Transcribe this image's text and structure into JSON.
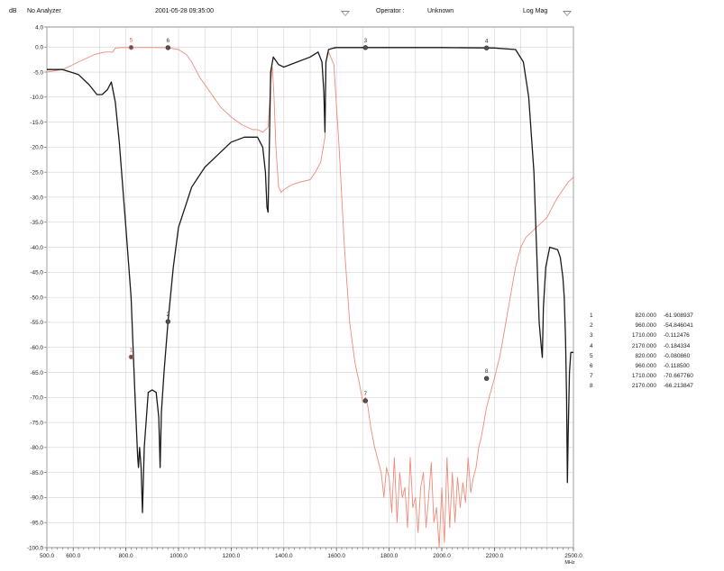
{
  "header": {
    "y_unit": "dB",
    "analyzer": "No Analyzer",
    "datetime": "2001-05-28    09:35:00",
    "operator_label": "Operator :",
    "operator_value": "Unknown",
    "format": "Log Mag"
  },
  "chart_data": {
    "type": "line",
    "title": "",
    "xlabel": "",
    "x_unit": "MHz",
    "ylabel": "",
    "y_unit": "dB",
    "xlim": [
      500,
      2500
    ],
    "ylim": [
      -100,
      4
    ],
    "grid": true,
    "x_tick_values": [
      500,
      600,
      800,
      1000,
      1200,
      1400,
      1600,
      1800,
      2000,
      2200,
      2500
    ],
    "x_tick_labels": [
      "500.0",
      "600.0",
      "800.0",
      "1000.0",
      "1200.0",
      "1400.0",
      "1600.0",
      "1800.0",
      "2000.0",
      "2200.0",
      "2500.0"
    ],
    "y_tick_values": [
      4,
      0,
      -5,
      -10,
      -15,
      -20,
      -25,
      -30,
      -35,
      -40,
      -45,
      -50,
      -55,
      -60,
      -65,
      -70,
      -75,
      -80,
      -85,
      -90,
      -95,
      -100
    ],
    "y_tick_labels": [
      "4.0",
      "0.0",
      "-5.0",
      "-10.0",
      "-15.0",
      "-20.0",
      "-25.0",
      "-30.0",
      "-35.0",
      "-40.0",
      "-45.0",
      "-50.0",
      "-55.0",
      "-60.0",
      "-65.0",
      "-70.0",
      "-75.0",
      "-80.0",
      "-85.0",
      "-90.0",
      "-95.0",
      "-100.0"
    ],
    "series": [
      {
        "color": "#1a1a1a",
        "x": [
          500,
          560,
          620,
          660,
          690,
          710,
          730,
          745,
          760,
          775,
          800,
          820,
          835,
          845,
          848,
          852,
          858,
          863,
          870,
          885,
          900,
          915,
          925,
          930,
          935,
          945,
          960,
          980,
          1000,
          1050,
          1100,
          1150,
          1200,
          1250,
          1300,
          1320,
          1330,
          1336,
          1340,
          1344,
          1350,
          1360,
          1380,
          1400,
          1450,
          1500,
          1530,
          1545,
          1552,
          1556,
          1560,
          1570,
          1590,
          1600,
          1700,
          1800,
          2000,
          2200,
          2280,
          2310,
          2330,
          2350,
          2360,
          2370,
          2378,
          2382,
          2386,
          2395,
          2410,
          2440,
          2450,
          2460,
          2465,
          2470,
          2474,
          2477,
          2480,
          2485,
          2490,
          2500
        ],
        "y": [
          -4.5,
          -4.5,
          -5.5,
          -7.5,
          -9.5,
          -9.5,
          -8.5,
          -7,
          -11,
          -19,
          -36,
          -50,
          -70,
          -82,
          -84,
          -80,
          -84,
          -93,
          -80,
          -69,
          -68.5,
          -69,
          -74,
          -84,
          -73,
          -65,
          -55,
          -44,
          -36,
          -28,
          -24,
          -21.5,
          -19,
          -18,
          -18,
          -20,
          -25,
          -32,
          -33,
          -23,
          -5,
          -2,
          -3.5,
          -4,
          -3,
          -2,
          -1,
          -3,
          -9,
          -17,
          -3,
          -0.5,
          -0.2,
          -0.1,
          -0.1,
          -0.1,
          -0.1,
          -0.2,
          -0.5,
          -3,
          -10,
          -25,
          -40,
          -55,
          -60,
          -62,
          -52,
          -44,
          -40,
          -40.5,
          -42,
          -46,
          -50,
          -58,
          -70,
          -87,
          -77,
          -65,
          -61,
          -61
        ]
      },
      {
        "color": "#f08a7a",
        "x": [
          500,
          560,
          620,
          680,
          720,
          750,
          760,
          790,
          820,
          850,
          900,
          960,
          1000,
          1030,
          1050,
          1080,
          1120,
          1160,
          1200,
          1240,
          1280,
          1300,
          1320,
          1330,
          1340,
          1345,
          1350,
          1356,
          1362,
          1370,
          1380,
          1390,
          1400,
          1430,
          1460,
          1500,
          1520,
          1540,
          1556,
          1560,
          1570,
          1590,
          1610,
          1630,
          1650,
          1670,
          1690,
          1700,
          1710,
          1720,
          1730,
          1745,
          1760,
          1770,
          1780,
          1790,
          1800,
          1810,
          1820,
          1830,
          1840,
          1850,
          1860,
          1870,
          1880,
          1890,
          1900,
          1910,
          1920,
          1930,
          1940,
          1950,
          1960,
          1970,
          1980,
          1990,
          2000,
          2010,
          2020,
          2030,
          2040,
          2050,
          2060,
          2070,
          2080,
          2090,
          2100,
          2110,
          2120,
          2130,
          2140,
          2150,
          2160,
          2170,
          2180,
          2190,
          2200,
          2210,
          2220,
          2230,
          2240,
          2260,
          2280,
          2300,
          2320,
          2340,
          2360,
          2380,
          2400,
          2420,
          2440,
          2460,
          2480,
          2500
        ],
        "y": [
          -5,
          -4.5,
          -3,
          -1.5,
          -1,
          -1,
          -0.2,
          -0.1,
          -0.1,
          -0.1,
          -0.1,
          -0.12,
          -0.5,
          -1.5,
          -3,
          -6,
          -9,
          -12,
          -14,
          -15.5,
          -16.5,
          -16.5,
          -17,
          -16.5,
          -16,
          -12,
          -7,
          -4,
          -9,
          -20,
          -28,
          -29,
          -28.5,
          -27.5,
          -27,
          -26.5,
          -25,
          -23,
          -18,
          -3,
          -1,
          -3.5,
          -20,
          -40,
          -55,
          -63,
          -68,
          -71,
          -70,
          -72,
          -76,
          -80,
          -83,
          -85,
          -90,
          -84,
          -86,
          -93,
          -82,
          -95,
          -85,
          -90,
          -88,
          -96,
          -82,
          -92,
          -90,
          -97,
          -88,
          -85,
          -96,
          -90,
          -83,
          -95,
          -92,
          -100,
          -88,
          -99,
          -82,
          -96,
          -85,
          -95,
          -86,
          -92,
          -87,
          -91,
          -82,
          -89,
          -86,
          -84,
          -80,
          -78,
          -75,
          -72,
          -70,
          -68,
          -66.2,
          -64,
          -62,
          -59,
          -56,
          -50,
          -44,
          -40,
          -38,
          -37,
          -36,
          -35,
          -34,
          -32,
          -30,
          -28.5,
          -27,
          -26
        ]
      }
    ],
    "markers": [
      {
        "id": "1",
        "x": 820,
        "y": -61.908937,
        "color": "#e06050",
        "x_label": "820.000",
        "y_label": "-61.908937"
      },
      {
        "id": "2",
        "x": 960,
        "y": -54.846041,
        "color": "#333333",
        "x_label": "960.000",
        "y_label": "-54.846041"
      },
      {
        "id": "3",
        "x": 1710,
        "y": -0.112476,
        "color": "#333333",
        "x_label": "1710.000",
        "y_label": "-0.112476"
      },
      {
        "id": "4",
        "x": 2170,
        "y": -0.184334,
        "color": "#333333",
        "x_label": "2170.000",
        "y_label": "-0.184334"
      },
      {
        "id": "5",
        "x": 820,
        "y": -0.08086,
        "color": "#e06050",
        "x_label": "820.000",
        "y_label": "-0.080860"
      },
      {
        "id": "6",
        "x": 960,
        "y": -0.1185,
        "color": "#333333",
        "x_label": "960.000",
        "y_label": "-0.118500"
      },
      {
        "id": "7",
        "x": 1710,
        "y": -70.66776,
        "color": "#333333",
        "x_label": "1710.000",
        "y_label": "-70.667760"
      },
      {
        "id": "8",
        "x": 2170,
        "y": -66.213847,
        "color": "#333333",
        "x_label": "2170.000",
        "y_label": "-66.213847"
      }
    ]
  }
}
